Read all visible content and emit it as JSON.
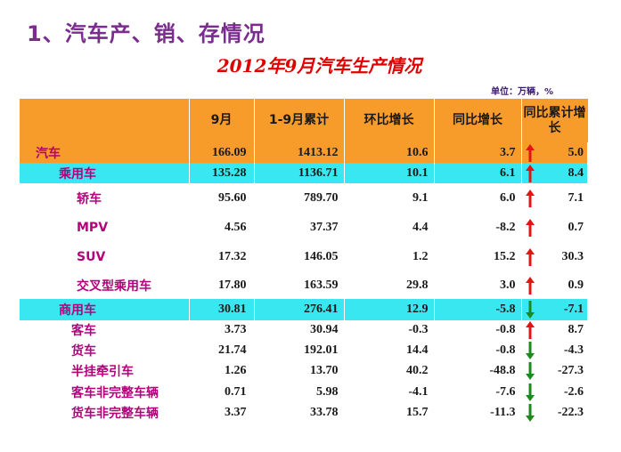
{
  "title": "1、汽车产、销、存情况",
  "subtitle": "2012年9月汽车生产情况",
  "unit": "单位：万辆，%",
  "header": [
    "",
    "9月",
    "1-9月累计",
    "环比增长",
    "同比增长",
    "同比累计增长"
  ],
  "rows": [
    {
      "name": "汽车",
      "c1": "166.09",
      "c2": "1413.12",
      "c3": "10.6",
      "c4": "3.7",
      "c5": "5.0",
      "dir": "up",
      "style": "orange",
      "indent": 0
    },
    {
      "name": "乘用车",
      "c1": "135.28",
      "c2": "1136.71",
      "c3": "10.1",
      "c4": "6.1",
      "c5": "8.4",
      "dir": "up",
      "style": "cyan",
      "indent": 1
    },
    {
      "name": "轿车",
      "c1": "95.60",
      "c2": "789.70",
      "c3": "9.1",
      "c4": "6.0",
      "c5": "7.1",
      "dir": "up",
      "style": "plain",
      "indent": 2
    },
    {
      "name": "MPV",
      "c1": "4.56",
      "c2": "37.37",
      "c3": "4.4",
      "c4": "-8.2",
      "c5": "0.7",
      "dir": "up",
      "style": "plain",
      "indent": 2
    },
    {
      "name": "SUV",
      "c1": "17.32",
      "c2": "146.05",
      "c3": "1.2",
      "c4": "15.2",
      "c5": "30.3",
      "dir": "up",
      "style": "plain",
      "indent": 2
    },
    {
      "name": "交叉型乘用车",
      "c1": "17.80",
      "c2": "163.59",
      "c3": "29.8",
      "c4": "3.0",
      "c5": "0.9",
      "dir": "up",
      "style": "plain",
      "indent": 2
    },
    {
      "name": "商用车",
      "c1": "30.81",
      "c2": "276.41",
      "c3": "12.9",
      "c4": "-5.8",
      "c5": "-7.1",
      "dir": "down",
      "style": "cyan",
      "indent": 1
    },
    {
      "name": "客车",
      "c1": "3.73",
      "c2": "30.94",
      "c3": "-0.3",
      "c4": "-0.8",
      "c5": "8.7",
      "dir": "up",
      "style": "plain",
      "indent": 3
    },
    {
      "name": "货车",
      "c1": "21.74",
      "c2": "192.01",
      "c3": "14.4",
      "c4": "-0.8",
      "c5": "-4.3",
      "dir": "down",
      "style": "plain",
      "indent": 3
    },
    {
      "name": "半挂牵引车",
      "c1": "1.26",
      "c2": "13.70",
      "c3": "40.2",
      "c4": "-48.8",
      "c5": "-27.3",
      "dir": "down",
      "style": "plain",
      "indent": 3
    },
    {
      "name": "客车非完整车辆",
      "c1": "0.71",
      "c2": "5.98",
      "c3": "-4.1",
      "c4": "-7.6",
      "c5": "-2.6",
      "dir": "down",
      "style": "plain",
      "indent": 3
    },
    {
      "name": "货车非完整车辆",
      "c1": "3.37",
      "c2": "33.78",
      "c3": "15.7",
      "c4": "-11.3",
      "c5": "-22.3",
      "dir": "down",
      "style": "plain",
      "indent": 3
    }
  ],
  "colors": {
    "up": "#e31414",
    "down": "#1e8a1e",
    "orange": "#f79b2a",
    "cyan": "#39e7f0",
    "title": "#7b2c8f",
    "subtitle": "#e00000"
  }
}
